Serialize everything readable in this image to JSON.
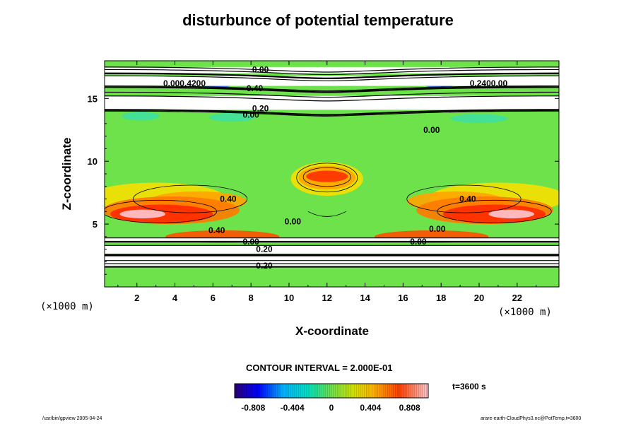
{
  "chart_data": {
    "type": "heatmap",
    "title": "disturbunce of potential temperature",
    "xlabel": "X-coordinate",
    "ylabel": "Z-coordinate",
    "x_unit": "(×1000 m)",
    "y_unit": "(×1000 m)",
    "xlim": [
      0.3,
      24.2
    ],
    "ylim": [
      0,
      18
    ],
    "x_ticks": [
      2,
      4,
      6,
      8,
      10,
      12,
      14,
      16,
      18,
      20,
      22
    ],
    "y_ticks": [
      5,
      10,
      15
    ],
    "contour_interval": "CONTOUR INTERVAL = 2.000E-01",
    "time_label": "t=3600 s",
    "colorbar": {
      "range": [
        -1.0,
        1.0
      ],
      "tick_values": [
        -0.808,
        -0.404,
        0,
        0.404,
        0.808
      ],
      "tick_labels": [
        "-0.808",
        "-0.404",
        "0",
        "0.404",
        "0.808"
      ]
    },
    "contour_labels": [
      {
        "x": 4.5,
        "y": 16.2,
        "text": "0.000.4200"
      },
      {
        "x": 20.5,
        "y": 16.2,
        "text": "0.2400.00"
      },
      {
        "x": 8.2,
        "y": 15.8,
        "text": "0.40"
      },
      {
        "x": 8.5,
        "y": 17.3,
        "text": "0.00"
      },
      {
        "x": 8.5,
        "y": 14.2,
        "text": "0.20"
      },
      {
        "x": 8.0,
        "y": 13.7,
        "text": "0.00"
      },
      {
        "x": 17.5,
        "y": 12.5,
        "text": "0.00"
      },
      {
        "x": 6.8,
        "y": 7.0,
        "text": "0.40"
      },
      {
        "x": 19.4,
        "y": 7.0,
        "text": "0.40"
      },
      {
        "x": 10.2,
        "y": 5.2,
        "text": "0.00"
      },
      {
        "x": 6.2,
        "y": 4.5,
        "text": "0.40"
      },
      {
        "x": 8.0,
        "y": 3.6,
        "text": "0.00"
      },
      {
        "x": 17.8,
        "y": 4.6,
        "text": "0.00"
      },
      {
        "x": 16.8,
        "y": 3.6,
        "text": "0.00"
      },
      {
        "x": 8.7,
        "y": 3.0,
        "text": "0.20"
      },
      {
        "x": 8.7,
        "y": 1.7,
        "text": "0.20"
      }
    ]
  },
  "footer": {
    "left": "/usr/bin/gpview 2005-04-24",
    "right": "arare-earth-CloudPhys3.nc@PotTemp,t=3600"
  }
}
